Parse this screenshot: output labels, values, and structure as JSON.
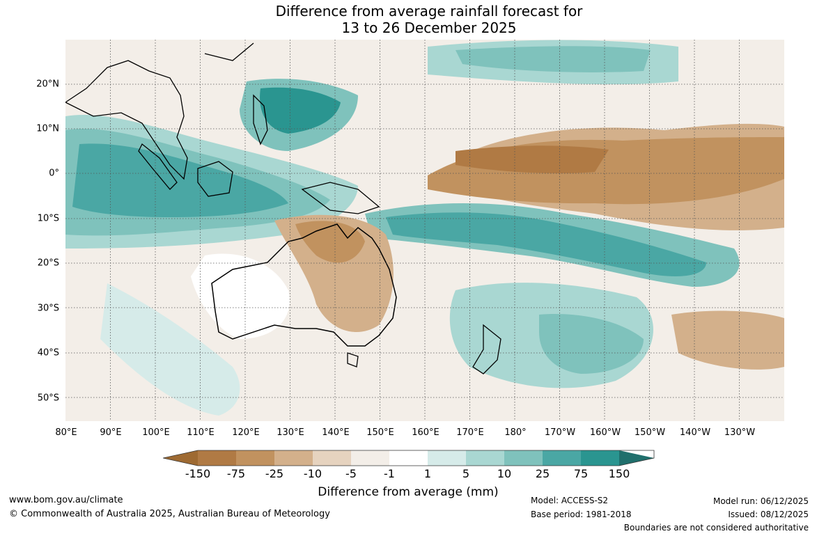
{
  "title": {
    "line1": "Difference from average rainfall forecast for",
    "line2": "13 to 26 December 2025"
  },
  "map": {
    "lat_labels": [
      "20°N",
      "10°N",
      "0°",
      "10°S",
      "20°S",
      "30°S",
      "40°S",
      "50°S"
    ],
    "lon_labels": [
      "80°E",
      "90°E",
      "100°E",
      "110°E",
      "120°E",
      "130°E",
      "140°E",
      "150°E",
      "160°E",
      "170°E",
      "180°",
      "170°W",
      "160°W",
      "150°W",
      "140°W",
      "130°W"
    ]
  },
  "colorbar": {
    "ticks": [
      "-150",
      "-75",
      "-25",
      "-10",
      "-5",
      "-1",
      "1",
      "5",
      "10",
      "25",
      "75",
      "150"
    ],
    "colors": [
      "#9e6a32",
      "#b07a44",
      "#c1925f",
      "#d3b08b",
      "#e6d3bf",
      "#f3eee8",
      "#ffffff",
      "#d6ebe9",
      "#a9d7d2",
      "#7fc2bc",
      "#4aa7a4",
      "#2a9590",
      "#206f6c"
    ],
    "label": "Difference from average (mm)"
  },
  "footer": {
    "website": "www.bom.gov.au/climate",
    "copyright": "© Commonwealth of Australia 2025, Australian Bureau of Meteorology",
    "model": "Model: ACCESS-S2",
    "base_period": "Base period: 1981-2018",
    "model_run": "Model run: 06/12/2025",
    "issued": "Issued: 08/12/2025",
    "disclaimer": "Boundaries are not considered authoritative"
  }
}
